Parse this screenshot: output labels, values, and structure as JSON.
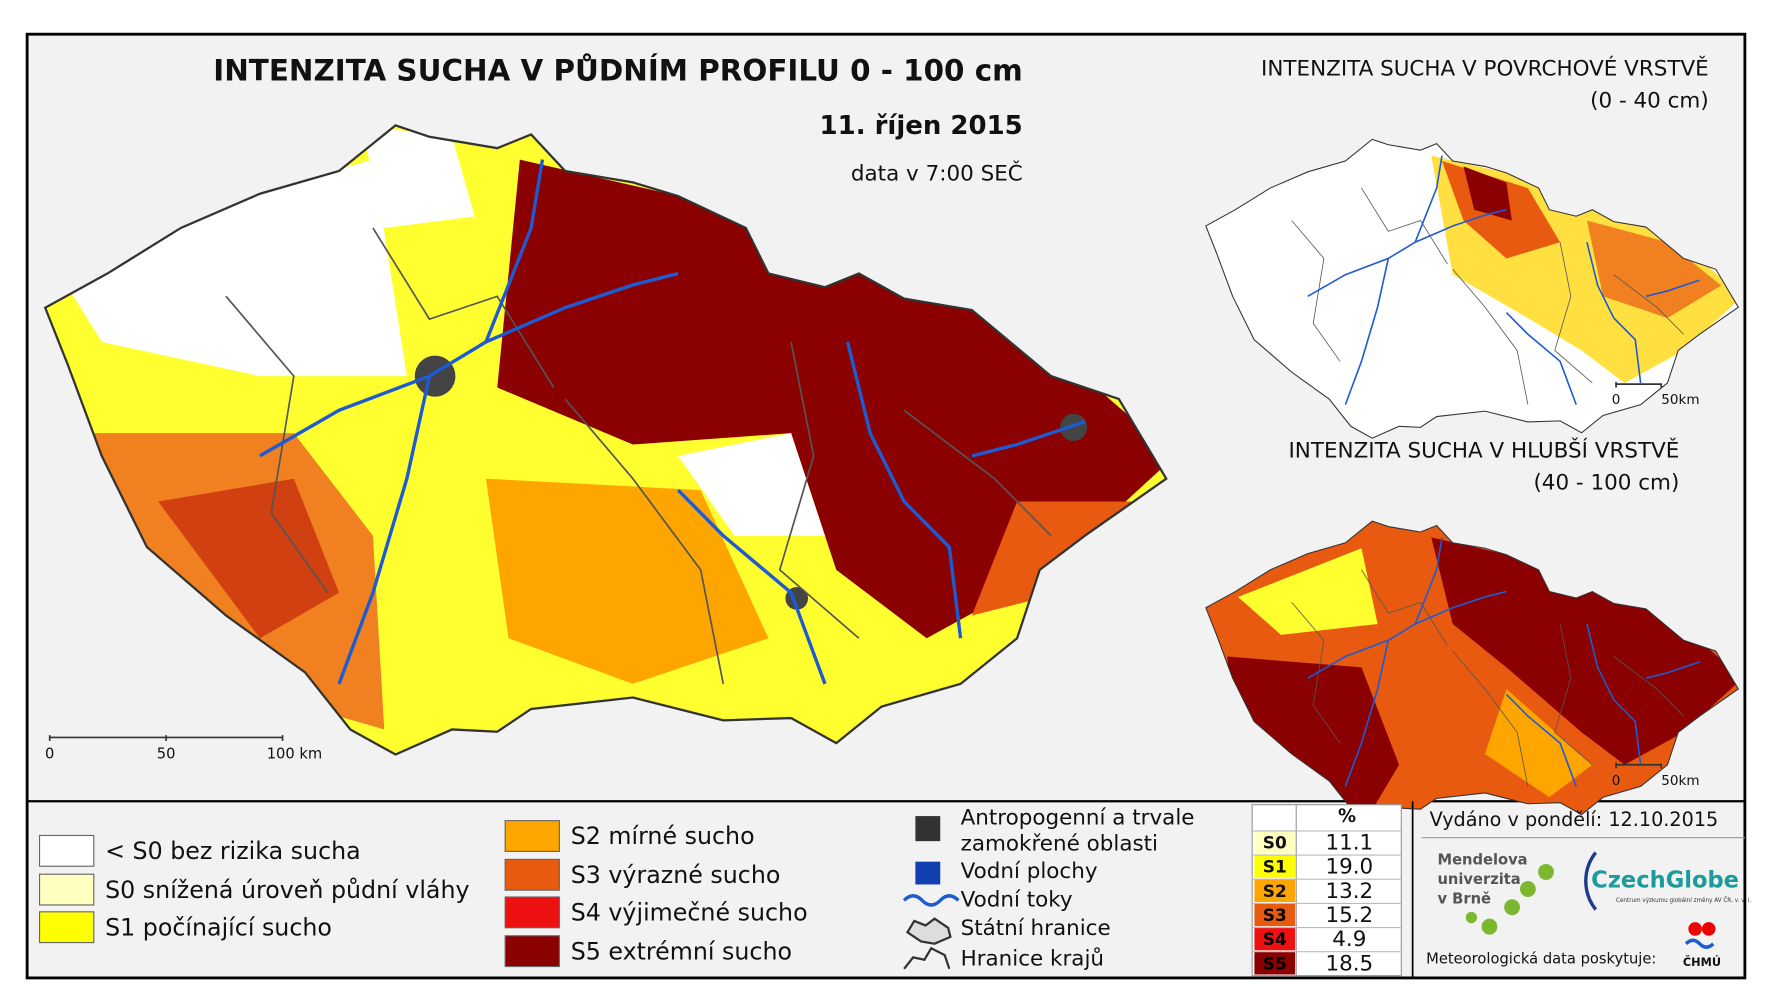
{
  "title": "INTENZITA SUCHA V PŮDNÍM PROFILU 0 - 100 cm",
  "date": "11. říjen 2015",
  "data_time": "data v 7:00 SEČ",
  "insets": [
    {
      "title": "INTENZITA SUCHA V POVRCHOVÉ VRSTVĚ",
      "subtitle": "(0 - 40 cm)",
      "scale": [
        "0",
        "50km"
      ]
    },
    {
      "title": "INTENZITA SUCHA V HLUBŠÍ VRSTVĚ",
      "subtitle": "(40 - 100 cm)",
      "scale": [
        "0",
        "50km"
      ]
    }
  ],
  "scale_bar": [
    "0",
    "50",
    "100 km"
  ],
  "legend": {
    "drought": [
      {
        "label": "< S0 bez rizika sucha",
        "color": "#ffffff"
      },
      {
        "label": "S0 snížená úroveň půdní vláhy",
        "color": "#ffffc0"
      },
      {
        "label": "S1 počínající sucho",
        "color": "#ffff00"
      },
      {
        "label": "S2 mírné sucho",
        "color": "#ffa500"
      },
      {
        "label": "S3 výrazné sucho",
        "color": "#e85a10"
      },
      {
        "label": "S4 výjimečné sucho",
        "color": "#ee1111"
      },
      {
        "label": "S5 extrémní sucho",
        "color": "#8b0000"
      }
    ],
    "other": [
      {
        "label": [
          "Antropogenní a trvale",
          "zamokřené oblasti"
        ]
      },
      {
        "label": [
          "Vodní plochy"
        ]
      },
      {
        "label": [
          "Vodní toky"
        ]
      },
      {
        "label": [
          "Státní hranice"
        ]
      },
      {
        "label": [
          "Hranice krajů"
        ]
      }
    ]
  },
  "table": {
    "header": "%",
    "rows": [
      [
        "S0",
        "11.1"
      ],
      [
        "S1",
        "19.0"
      ],
      [
        "S2",
        "13.2"
      ],
      [
        "S3",
        "15.2"
      ],
      [
        "S4",
        "4.9"
      ],
      [
        "S5",
        "18.5"
      ]
    ]
  },
  "issued": "Vydáno v pondělí: 12.10.2015",
  "logos": {
    "mendel": [
      "Mendelova",
      "univerzita",
      "v Brně"
    ],
    "czechglobe": "CzechGlobe",
    "czechglobe_sub": "Centrum výzkumu globální změny AV ČR, v. v. i.",
    "provider": "Meteorologická data poskytuje:",
    "chmi": "ČHMÚ"
  }
}
